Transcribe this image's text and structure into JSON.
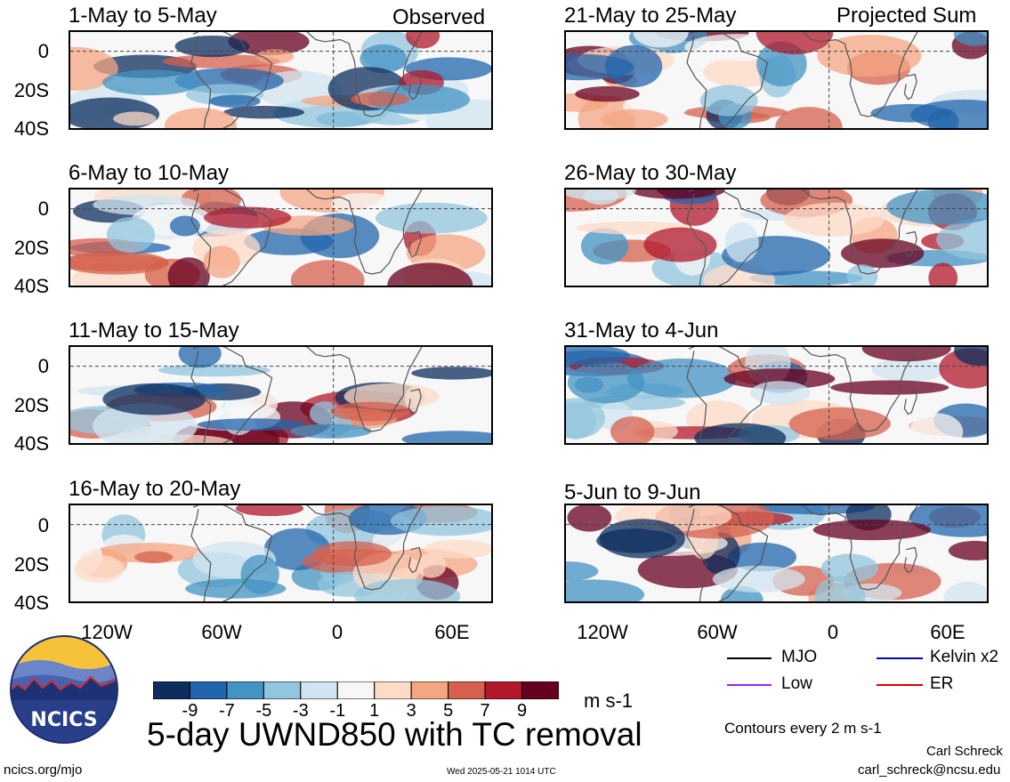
{
  "chart_data": {
    "type": "heatmap",
    "title": "5-day UWND850 with TC removal",
    "units": "m s-1",
    "contour_note": "Contours every 2 m s-1",
    "column_labels": {
      "left": "Observed",
      "right": "Projected Sum"
    },
    "y_ticks": [
      "0",
      "20S",
      "40S"
    ],
    "x_ticks": [
      "120W",
      "60W",
      "0",
      "60E"
    ],
    "colorbar": {
      "ticks": [
        "-9",
        "-7",
        "-5",
        "-3",
        "-1",
        "1",
        "3",
        "5",
        "7",
        "9"
      ],
      "colors": [
        "#0c2d5e",
        "#2166ac",
        "#4393c3",
        "#92c5de",
        "#d1e5f0",
        "#f7f7f7",
        "#fddbc7",
        "#f4a582",
        "#d6604d",
        "#b2182b",
        "#67001f"
      ]
    },
    "panels": [
      {
        "id": "p1",
        "title": "1-May to 5-May"
      },
      {
        "id": "p2",
        "title": "6-May to 10-May"
      },
      {
        "id": "p3",
        "title": "11-May to 15-May"
      },
      {
        "id": "p4",
        "title": "16-May to 20-May"
      },
      {
        "id": "p5",
        "title": "21-May to 25-May"
      },
      {
        "id": "p6",
        "title": "26-May to 30-May"
      },
      {
        "id": "p7",
        "title": "31-May to 4-Jun"
      },
      {
        "id": "p8",
        "title": "5-Jun to 9-Jun"
      }
    ],
    "legend": [
      {
        "label": "MJO",
        "color": "#000000"
      },
      {
        "label": "Kelvin x2",
        "color": "#0000cc"
      },
      {
        "label": "Low",
        "color": "#a020f0"
      },
      {
        "label": "ER",
        "color": "#dd0000"
      }
    ]
  },
  "footer": {
    "logo_text": "NCICS",
    "url": "ncics.org/mjo",
    "timestamp": "Wed 2025-05-21 1014 UTC",
    "author": "Carl Schreck",
    "email": "carl_schreck@ncsu.edu"
  }
}
